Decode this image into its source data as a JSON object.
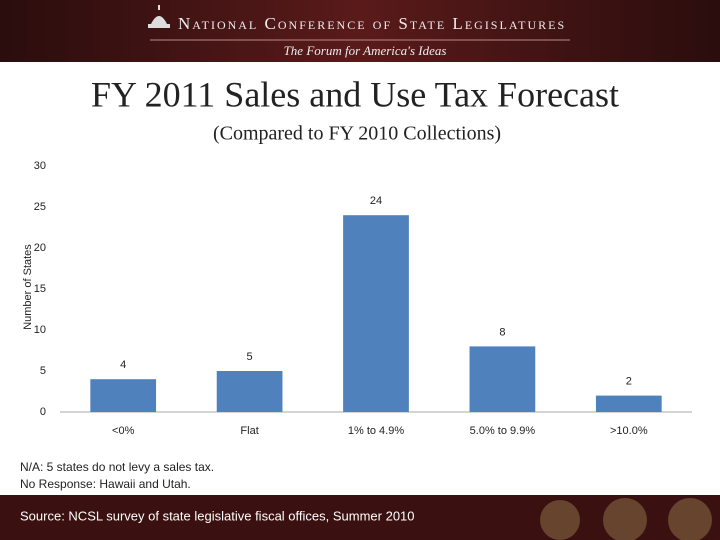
{
  "header": {
    "organization": "National Conference of State Legislatures",
    "tagline": "The Forum for America's Ideas"
  },
  "chart_data": {
    "type": "bar",
    "title": "FY 2011 Sales and Use Tax Forecast",
    "subtitle": "(Compared to FY 2010 Collections)",
    "y_label": "Number of States",
    "categories": [
      "<0%",
      "Flat",
      "1% to 4.9%",
      "5.0% to 9.9%",
      ">10.0%"
    ],
    "values": [
      4,
      5,
      24,
      8,
      2
    ],
    "color": "#4f81bd",
    "ylim": [
      0,
      30
    ],
    "yticks": [
      0,
      5,
      10,
      15,
      20,
      25,
      30
    ],
    "grid": false,
    "notes": [
      "N/A: 5 states do not levy a sales tax.",
      "No Response: Hawaii and Utah."
    ],
    "source": "Source: NCSL survey of state legislative fiscal offices, Summer 2010"
  }
}
